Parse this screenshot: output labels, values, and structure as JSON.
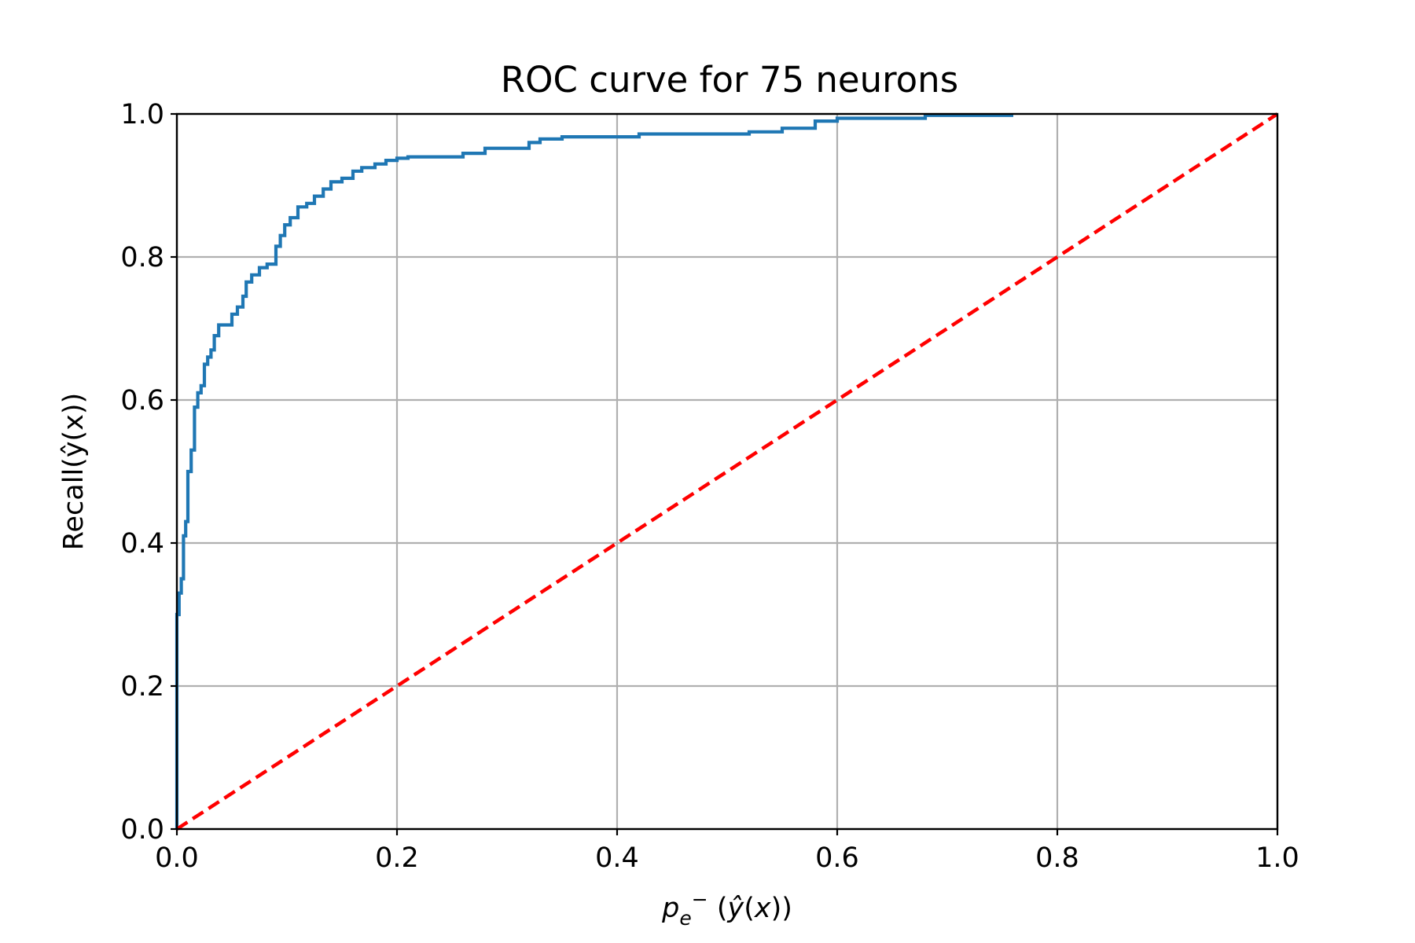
{
  "chart_data": {
    "type": "line",
    "title": "ROC curve for 75 neurons",
    "xlabel": "p_e^- (ŷ(x))",
    "ylabel": "Recall(ŷ(x))",
    "xlim": [
      0.0,
      1.0
    ],
    "ylim": [
      0.0,
      1.0
    ],
    "xticks": [
      "0.0",
      "0.2",
      "0.4",
      "0.6",
      "0.8",
      "1.0"
    ],
    "yticks": [
      "0.0",
      "0.2",
      "0.4",
      "0.6",
      "0.8",
      "1.0"
    ],
    "grid": true,
    "series": [
      {
        "style": "solid",
        "color": "#1f77b4",
        "x": [
          0.0,
          0.0,
          0.002,
          0.002,
          0.004,
          0.004,
          0.006,
          0.006,
          0.008,
          0.008,
          0.01,
          0.01,
          0.013,
          0.013,
          0.016,
          0.016,
          0.019,
          0.019,
          0.022,
          0.022,
          0.025,
          0.025,
          0.028,
          0.028,
          0.031,
          0.031,
          0.034,
          0.034,
          0.038,
          0.038,
          0.05,
          0.05,
          0.055,
          0.055,
          0.06,
          0.06,
          0.063,
          0.063,
          0.068,
          0.068,
          0.075,
          0.075,
          0.082,
          0.082,
          0.09,
          0.09,
          0.094,
          0.094,
          0.098,
          0.098,
          0.103,
          0.103,
          0.11,
          0.11,
          0.118,
          0.118,
          0.125,
          0.125,
          0.133,
          0.133,
          0.14,
          0.14,
          0.15,
          0.15,
          0.16,
          0.16,
          0.168,
          0.168,
          0.18,
          0.18,
          0.19,
          0.19,
          0.2,
          0.2,
          0.21,
          0.21,
          0.26,
          0.26,
          0.28,
          0.28,
          0.32,
          0.32,
          0.33,
          0.33,
          0.35,
          0.35,
          0.42,
          0.42,
          0.52,
          0.52,
          0.55,
          0.55,
          0.58,
          0.58,
          0.6,
          0.6,
          0.68,
          0.68,
          0.76
        ],
        "y": [
          0.0,
          0.3,
          0.3,
          0.33,
          0.33,
          0.35,
          0.35,
          0.41,
          0.41,
          0.43,
          0.43,
          0.5,
          0.5,
          0.53,
          0.53,
          0.59,
          0.59,
          0.61,
          0.61,
          0.62,
          0.62,
          0.65,
          0.65,
          0.66,
          0.66,
          0.67,
          0.67,
          0.69,
          0.69,
          0.705,
          0.705,
          0.72,
          0.72,
          0.73,
          0.73,
          0.745,
          0.745,
          0.765,
          0.765,
          0.775,
          0.775,
          0.785,
          0.785,
          0.79,
          0.79,
          0.815,
          0.815,
          0.83,
          0.83,
          0.845,
          0.845,
          0.855,
          0.855,
          0.87,
          0.87,
          0.875,
          0.875,
          0.885,
          0.885,
          0.895,
          0.895,
          0.905,
          0.905,
          0.91,
          0.91,
          0.92,
          0.92,
          0.925,
          0.925,
          0.93,
          0.93,
          0.935,
          0.935,
          0.938,
          0.938,
          0.94,
          0.94,
          0.945,
          0.945,
          0.952,
          0.952,
          0.96,
          0.96,
          0.965,
          0.965,
          0.968,
          0.968,
          0.972,
          0.972,
          0.975,
          0.975,
          0.98,
          0.98,
          0.99,
          0.99,
          0.994,
          0.994,
          0.998,
          0.998
        ]
      },
      {
        "style": "dashed",
        "color": "#ff0000",
        "x": [
          0.0,
          1.0
        ],
        "y": [
          0.0,
          1.0
        ]
      }
    ]
  }
}
